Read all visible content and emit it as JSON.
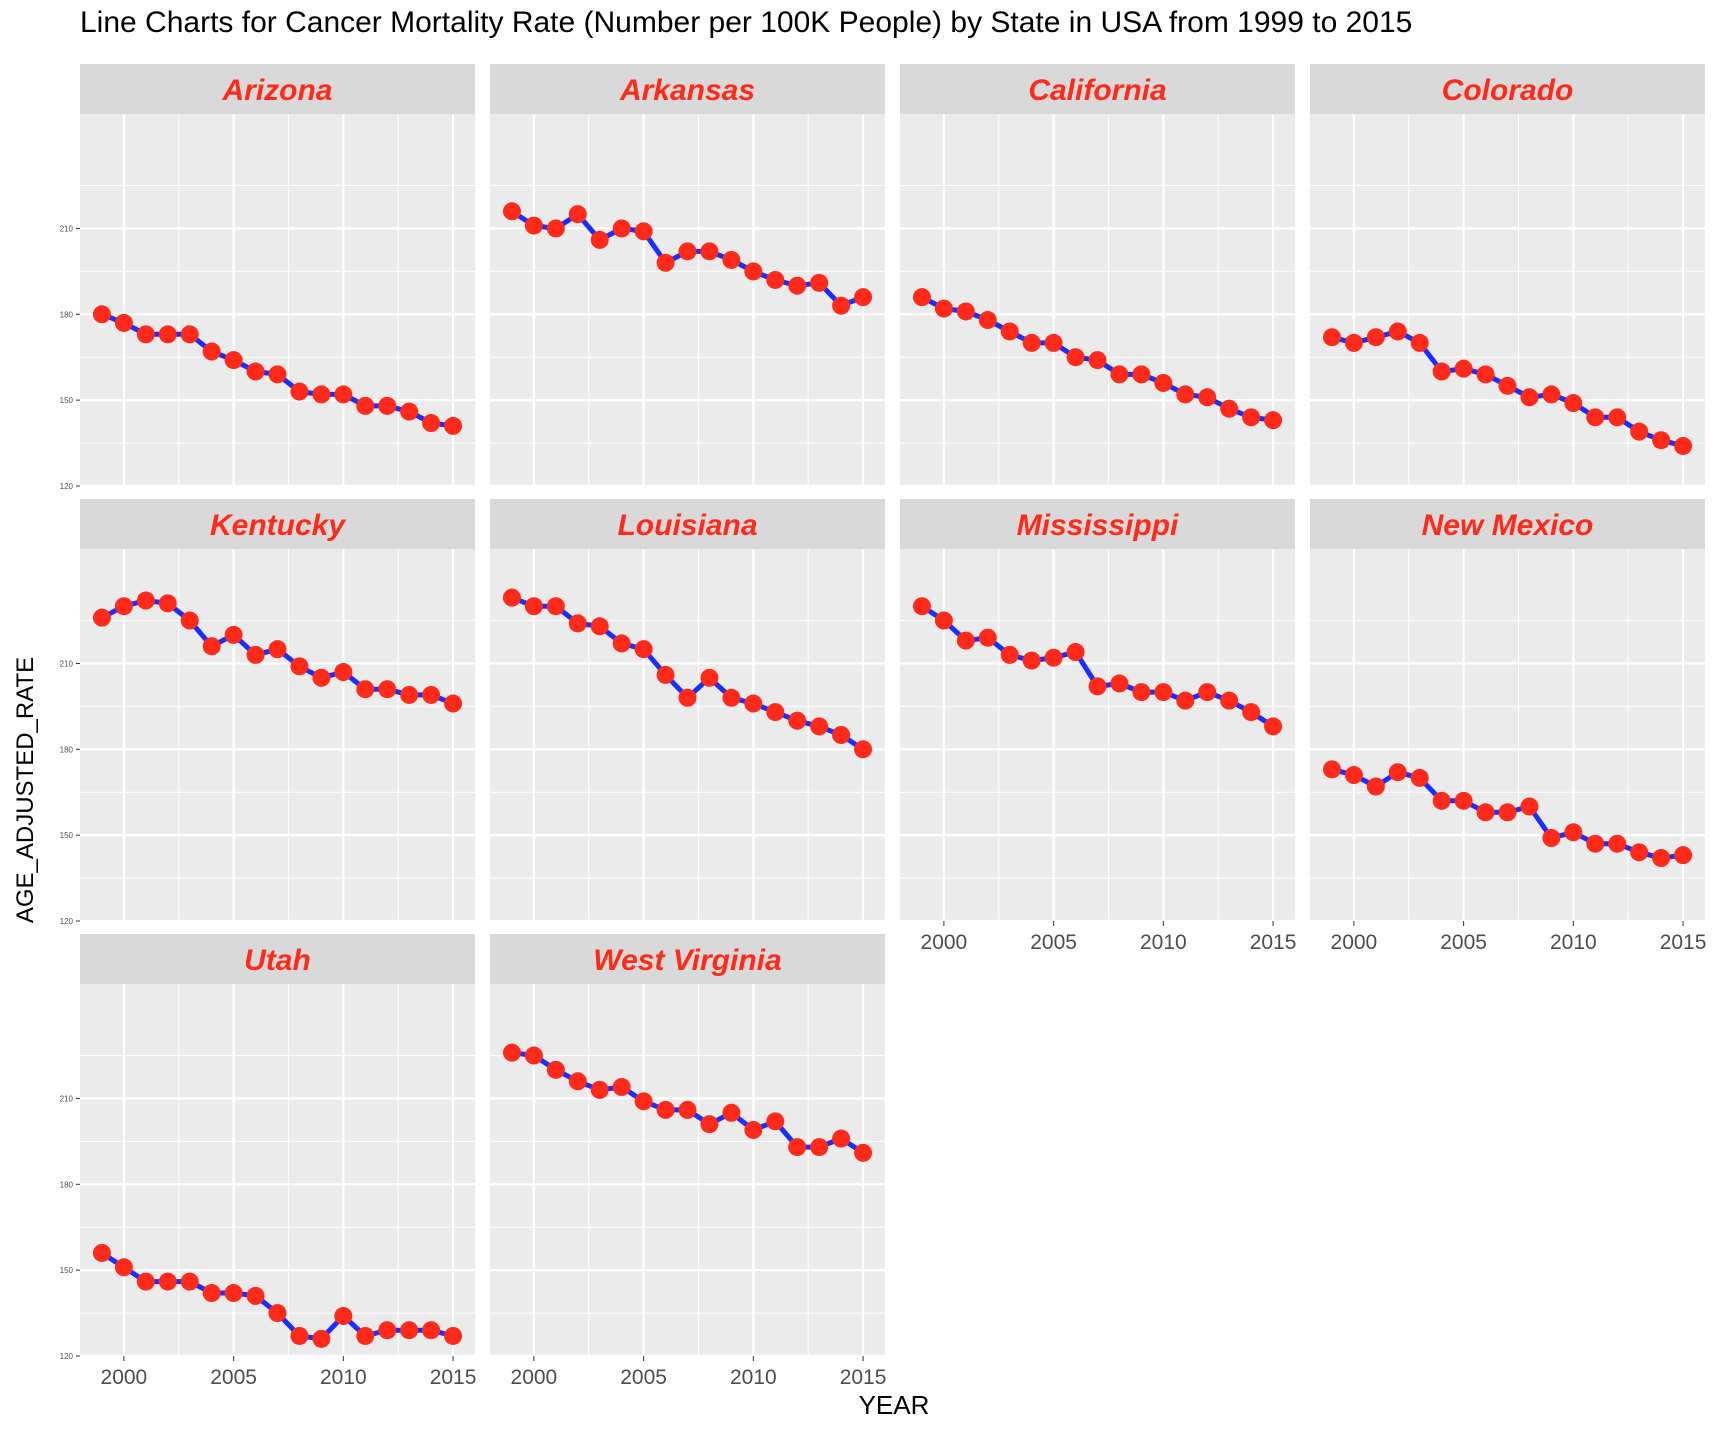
{
  "page": {
    "title": "Line Charts for Cancer Mortality Rate (Number per 100K People) by State in USA from 1999 to 2015"
  },
  "chart_data": {
    "type": "line",
    "title": "Line Charts for Cancer Mortality Rate (Number per 100K People) by State in USA from 1999 to 2015",
    "xlabel": "YEAR",
    "ylabel": "AGE_ADJUSTED_RATE",
    "x": [
      1999,
      2000,
      2001,
      2002,
      2003,
      2004,
      2005,
      2006,
      2007,
      2008,
      2009,
      2010,
      2011,
      2012,
      2013,
      2014,
      2015
    ],
    "xlim": [
      1998,
      2016
    ],
    "ylim": [
      120,
      250
    ],
    "y_ticks": [
      120,
      150,
      180,
      210
    ],
    "x_ticks": [
      2000,
      2005,
      2010,
      2015
    ],
    "grid": true,
    "layout": "facet grid 4 columns x 3 rows, shared axes",
    "colors": {
      "line": "#1a2eff",
      "point": "#ff2a1a",
      "strip_bg": "#d9d9d9",
      "strip_text": "#ff2a1a",
      "panel_bg": "#ebebeb",
      "grid": "#ffffff"
    },
    "panels": [
      {
        "name": "Arizona",
        "values": [
          180,
          177,
          173,
          173,
          173,
          167,
          164,
          160,
          159,
          153,
          152,
          152,
          148,
          148,
          146,
          142,
          141
        ]
      },
      {
        "name": "Arkansas",
        "values": [
          216,
          211,
          210,
          215,
          206,
          210,
          209,
          198,
          202,
          202,
          199,
          195,
          192,
          190,
          191,
          183,
          186
        ]
      },
      {
        "name": "California",
        "values": [
          186,
          182,
          181,
          178,
          174,
          170,
          170,
          165,
          164,
          159,
          159,
          156,
          152,
          151,
          147,
          144,
          143
        ]
      },
      {
        "name": "Colorado",
        "values": [
          172,
          170,
          172,
          174,
          170,
          160,
          161,
          159,
          155,
          151,
          152,
          149,
          144,
          144,
          139,
          136,
          134
        ]
      },
      {
        "name": "Kentucky",
        "values": [
          226,
          230,
          232,
          231,
          225,
          216,
          220,
          213,
          215,
          209,
          205,
          207,
          201,
          201,
          199,
          199,
          196
        ]
      },
      {
        "name": "Louisiana",
        "values": [
          233,
          230,
          230,
          224,
          223,
          217,
          215,
          206,
          198,
          205,
          198,
          196,
          193,
          190,
          188,
          185,
          180
        ]
      },
      {
        "name": "Mississippi",
        "values": [
          230,
          225,
          218,
          219,
          213,
          211,
          212,
          214,
          202,
          203,
          200,
          200,
          197,
          200,
          197,
          193,
          188
        ]
      },
      {
        "name": "New Mexico",
        "values": [
          173,
          171,
          167,
          172,
          170,
          162,
          162,
          158,
          158,
          160,
          149,
          151,
          147,
          147,
          144,
          142,
          143
        ]
      },
      {
        "name": "Utah",
        "values": [
          156,
          151,
          146,
          146,
          146,
          142,
          142,
          141,
          135,
          127,
          126,
          134,
          127,
          129,
          129,
          129,
          127
        ]
      },
      {
        "name": "West Virginia",
        "values": [
          226,
          225,
          220,
          216,
          213,
          214,
          209,
          206,
          206,
          201,
          205,
          199,
          202,
          193,
          193,
          196,
          191
        ]
      }
    ]
  }
}
